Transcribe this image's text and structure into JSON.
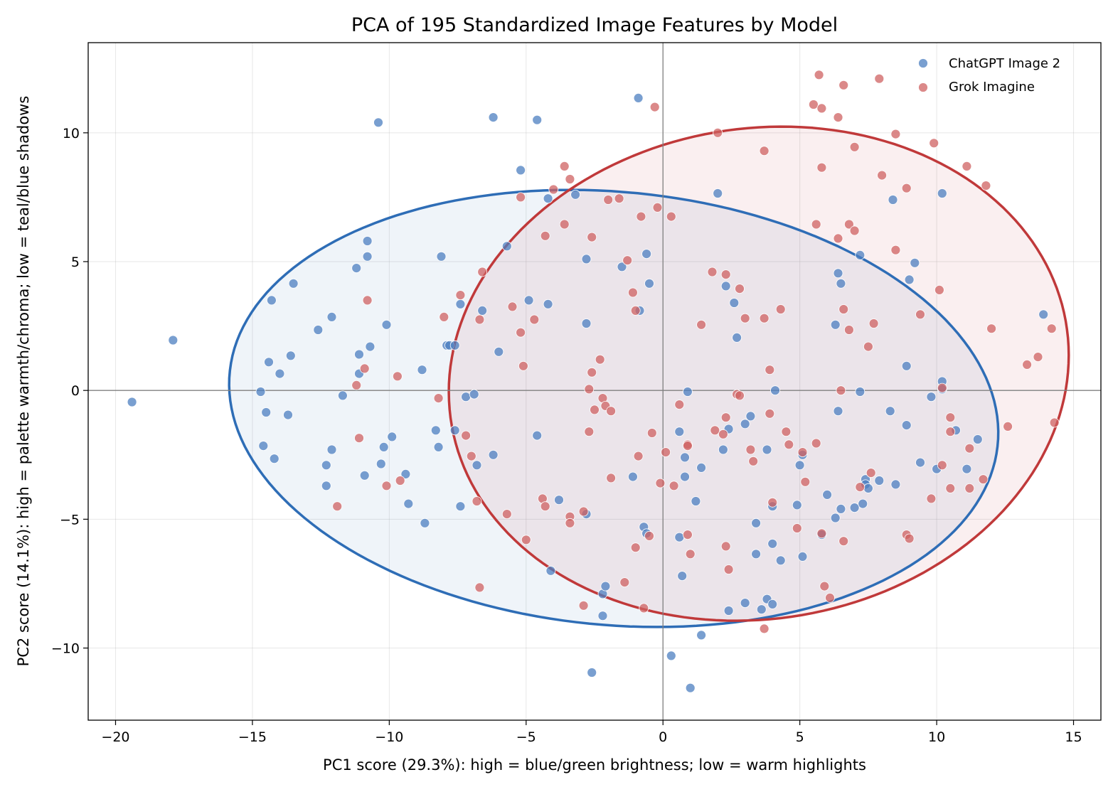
{
  "chart_data": {
    "type": "scatter",
    "title": "PCA of 195 Standardized Image Features by Model",
    "xlabel": "PC1 score (29.3%): high = blue/green brightness; low = warm highlights",
    "ylabel": "PC2 score (14.1%): high = palette warmth/chroma; low = teal/blue shadows",
    "xlim": [
      -21.0,
      16.0
    ],
    "ylim": [
      -12.8,
      13.5
    ],
    "xticks": [
      -20,
      -15,
      -10,
      -5,
      0,
      5,
      10,
      15
    ],
    "yticks": [
      -10,
      -5,
      0,
      5,
      10
    ],
    "xtick_labels": [
      "−20",
      "−15",
      "−10",
      "−5",
      "0",
      "5",
      "10",
      "15"
    ],
    "ytick_labels": [
      "−10",
      "−5",
      "0",
      "5",
      "10"
    ],
    "grid": true,
    "legend_position": "top-right",
    "series": [
      {
        "name": "ChatGPT Image 2",
        "color": "#4c7fc0",
        "ellipse": {
          "cx": -1.8,
          "cy": -0.7,
          "rx": 14.1,
          "ry": 8.4,
          "angle_deg": -6,
          "color": "#2e6db6"
        },
        "points": [
          [
            -19.4,
            -0.45
          ],
          [
            -17.9,
            1.95
          ],
          [
            -14.7,
            -0.05
          ],
          [
            -14.6,
            -2.15
          ],
          [
            -14.5,
            -0.85
          ],
          [
            -14.4,
            1.1
          ],
          [
            -14.3,
            3.5
          ],
          [
            -14.2,
            -2.65
          ],
          [
            -14.0,
            0.65
          ],
          [
            -13.7,
            -0.95
          ],
          [
            -13.6,
            1.35
          ],
          [
            -13.5,
            4.15
          ],
          [
            -12.6,
            2.35
          ],
          [
            -12.3,
            -2.9
          ],
          [
            -12.3,
            -3.7
          ],
          [
            -12.1,
            2.85
          ],
          [
            -12.1,
            -2.3
          ],
          [
            -11.7,
            -0.2
          ],
          [
            -11.2,
            4.75
          ],
          [
            -11.1,
            1.4
          ],
          [
            -11.1,
            0.65
          ],
          [
            -10.9,
            -3.3
          ],
          [
            -10.8,
            5.8
          ],
          [
            -10.8,
            5.2
          ],
          [
            -10.7,
            1.7
          ],
          [
            -10.4,
            10.4
          ],
          [
            -10.3,
            -2.85
          ],
          [
            -10.2,
            -2.2
          ],
          [
            -10.1,
            2.55
          ],
          [
            -9.9,
            -1.8
          ],
          [
            -9.4,
            -3.25
          ],
          [
            -9.3,
            -4.4
          ],
          [
            -8.8,
            0.8
          ],
          [
            -8.7,
            -5.15
          ],
          [
            -8.3,
            -1.55
          ],
          [
            -8.2,
            -2.2
          ],
          [
            -8.1,
            5.2
          ],
          [
            -7.9,
            1.75
          ],
          [
            -7.8,
            1.75
          ],
          [
            -7.6,
            -1.55
          ],
          [
            -7.6,
            1.75
          ],
          [
            -7.4,
            3.35
          ],
          [
            -7.4,
            -4.5
          ],
          [
            -7.2,
            -0.25
          ],
          [
            -6.9,
            -0.15
          ],
          [
            -6.8,
            -2.9
          ],
          [
            -6.6,
            3.1
          ],
          [
            -6.2,
            10.6
          ],
          [
            -6.2,
            -2.5
          ],
          [
            -6.0,
            1.5
          ],
          [
            -5.7,
            5.6
          ],
          [
            -5.2,
            8.55
          ],
          [
            -4.9,
            3.5
          ],
          [
            -4.6,
            10.5
          ],
          [
            -4.6,
            -1.75
          ],
          [
            -4.2,
            3.35
          ],
          [
            -4.2,
            7.45
          ],
          [
            -4.1,
            -7.0
          ],
          [
            -3.8,
            -4.25
          ],
          [
            -3.2,
            7.6
          ],
          [
            -2.8,
            5.1
          ],
          [
            -2.8,
            2.6
          ],
          [
            -2.8,
            -4.8
          ],
          [
            -2.2,
            -8.75
          ],
          [
            -2.2,
            -7.9
          ],
          [
            -2.1,
            -7.6
          ],
          [
            -2.6,
            -10.95
          ],
          [
            -1.5,
            4.8
          ],
          [
            -1.1,
            -3.35
          ],
          [
            -0.9,
            11.35
          ],
          [
            -0.85,
            3.1
          ],
          [
            -0.7,
            -5.3
          ],
          [
            -0.6,
            -5.55
          ],
          [
            -0.6,
            5.3
          ],
          [
            -0.5,
            4.15
          ],
          [
            0.3,
            -10.3
          ],
          [
            0.6,
            -5.7
          ],
          [
            0.6,
            -1.6
          ],
          [
            0.7,
            -7.2
          ],
          [
            0.8,
            -3.35
          ],
          [
            0.8,
            -2.6
          ],
          [
            0.9,
            -0.05
          ],
          [
            1.0,
            -11.55
          ],
          [
            1.2,
            -4.3
          ],
          [
            1.4,
            -9.5
          ],
          [
            1.4,
            -3.0
          ],
          [
            2.0,
            7.65
          ],
          [
            2.2,
            -2.3
          ],
          [
            2.3,
            4.05
          ],
          [
            2.4,
            -1.5
          ],
          [
            2.4,
            -8.55
          ],
          [
            2.6,
            3.4
          ],
          [
            2.7,
            2.05
          ],
          [
            3.0,
            -8.25
          ],
          [
            3.0,
            -1.3
          ],
          [
            3.2,
            -1.0
          ],
          [
            3.4,
            -5.15
          ],
          [
            3.4,
            -6.35
          ],
          [
            3.6,
            -8.5
          ],
          [
            3.8,
            -8.1
          ],
          [
            3.8,
            -2.3
          ],
          [
            4.0,
            -4.5
          ],
          [
            4.0,
            -5.95
          ],
          [
            4.0,
            -8.3
          ],
          [
            4.1,
            0.0
          ],
          [
            4.3,
            -6.6
          ],
          [
            4.9,
            -4.45
          ],
          [
            5.0,
            -2.9
          ],
          [
            5.1,
            -6.45
          ],
          [
            5.1,
            -2.5
          ],
          [
            5.8,
            -5.6
          ],
          [
            6.0,
            -4.05
          ],
          [
            6.3,
            -4.95
          ],
          [
            6.3,
            2.55
          ],
          [
            6.4,
            4.55
          ],
          [
            6.4,
            -0.8
          ],
          [
            6.5,
            -4.6
          ],
          [
            6.5,
            4.15
          ],
          [
            7.2,
            -0.05
          ],
          [
            7.2,
            5.25
          ],
          [
            7.3,
            -4.4
          ],
          [
            7.4,
            -3.45
          ],
          [
            7.4,
            -3.65
          ],
          [
            7.5,
            -3.8
          ],
          [
            7.0,
            -4.55
          ],
          [
            7.9,
            -3.5
          ],
          [
            8.3,
            -0.8
          ],
          [
            8.4,
            7.4
          ],
          [
            8.5,
            -3.65
          ],
          [
            8.9,
            0.95
          ],
          [
            8.9,
            -1.35
          ],
          [
            9.0,
            4.3
          ],
          [
            9.2,
            4.95
          ],
          [
            9.4,
            -2.8
          ],
          [
            9.8,
            -0.25
          ],
          [
            10.0,
            -3.05
          ],
          [
            10.2,
            7.65
          ],
          [
            10.2,
            0.35
          ],
          [
            10.2,
            0.05
          ],
          [
            10.7,
            -1.55
          ],
          [
            11.1,
            -3.05
          ],
          [
            11.5,
            -1.9
          ],
          [
            13.9,
            2.95
          ]
        ]
      },
      {
        "name": "Grok Imagine",
        "color": "#cf6262",
        "ellipse": {
          "cx": 3.5,
          "cy": 0.65,
          "rx": 11.4,
          "ry": 9.5,
          "angle_deg": 12,
          "color": "#c0393a"
        },
        "points": [
          [
            -11.9,
            -4.5
          ],
          [
            -11.2,
            0.2
          ],
          [
            -11.1,
            -1.85
          ],
          [
            -10.9,
            0.85
          ],
          [
            -10.8,
            3.5
          ],
          [
            -10.1,
            -3.7
          ],
          [
            -9.6,
            -3.5
          ],
          [
            -9.7,
            0.55
          ],
          [
            -8.2,
            -0.3
          ],
          [
            -8.0,
            2.85
          ],
          [
            -7.4,
            3.7
          ],
          [
            -7.2,
            -1.75
          ],
          [
            -7.0,
            -2.55
          ],
          [
            -6.8,
            -4.3
          ],
          [
            -6.7,
            2.75
          ],
          [
            -6.6,
            4.6
          ],
          [
            -6.7,
            -7.65
          ],
          [
            -5.7,
            -4.8
          ],
          [
            -5.5,
            3.25
          ],
          [
            -5.2,
            2.25
          ],
          [
            -5.2,
            7.5
          ],
          [
            -5.1,
            0.95
          ],
          [
            -5.0,
            -5.8
          ],
          [
            -4.7,
            2.75
          ],
          [
            -4.4,
            -4.2
          ],
          [
            -4.3,
            -4.5
          ],
          [
            -4.3,
            6.0
          ],
          [
            -4.0,
            7.8
          ],
          [
            -3.6,
            8.7
          ],
          [
            -3.6,
            6.45
          ],
          [
            -3.4,
            8.2
          ],
          [
            -3.4,
            -4.9
          ],
          [
            -3.4,
            -5.15
          ],
          [
            -2.9,
            -4.7
          ],
          [
            -2.9,
            -8.35
          ],
          [
            -2.7,
            -1.6
          ],
          [
            -2.7,
            0.05
          ],
          [
            -2.6,
            0.7
          ],
          [
            -2.6,
            5.95
          ],
          [
            -2.5,
            -0.75
          ],
          [
            -2.3,
            1.2
          ],
          [
            -2.2,
            -0.3
          ],
          [
            -2.1,
            -0.6
          ],
          [
            -2.0,
            7.4
          ],
          [
            -1.9,
            -0.8
          ],
          [
            -1.9,
            -3.4
          ],
          [
            -1.6,
            7.45
          ],
          [
            -1.4,
            -7.45
          ],
          [
            -1.3,
            5.05
          ],
          [
            -1.1,
            3.8
          ],
          [
            -1.0,
            -6.1
          ],
          [
            -1.0,
            3.1
          ],
          [
            -0.9,
            -2.55
          ],
          [
            -0.8,
            6.75
          ],
          [
            -0.7,
            -8.45
          ],
          [
            -0.5,
            -5.65
          ],
          [
            -0.4,
            -1.65
          ],
          [
            -0.3,
            11.0
          ],
          [
            -0.2,
            7.1
          ],
          [
            -0.1,
            -3.6
          ],
          [
            0.1,
            -2.4
          ],
          [
            0.3,
            6.75
          ],
          [
            0.4,
            -3.7
          ],
          [
            0.6,
            -0.55
          ],
          [
            0.9,
            -2.1
          ],
          [
            0.9,
            -2.15
          ],
          [
            0.9,
            -5.6
          ],
          [
            1.0,
            -6.35
          ],
          [
            1.4,
            2.55
          ],
          [
            1.8,
            4.6
          ],
          [
            1.9,
            -1.55
          ],
          [
            2.0,
            10.0
          ],
          [
            2.2,
            -1.7
          ],
          [
            2.3,
            4.5
          ],
          [
            2.3,
            -1.05
          ],
          [
            2.3,
            -6.05
          ],
          [
            2.4,
            -6.95
          ],
          [
            2.7,
            -0.15
          ],
          [
            2.8,
            -0.2
          ],
          [
            2.8,
            3.95
          ],
          [
            3.0,
            2.8
          ],
          [
            3.2,
            -2.3
          ],
          [
            3.3,
            -2.75
          ],
          [
            3.7,
            9.3
          ],
          [
            3.7,
            -9.25
          ],
          [
            3.7,
            2.8
          ],
          [
            3.9,
            0.8
          ],
          [
            3.9,
            -0.9
          ],
          [
            4.0,
            -4.35
          ],
          [
            4.3,
            3.15
          ],
          [
            4.5,
            -1.6
          ],
          [
            4.6,
            -2.1
          ],
          [
            4.9,
            -5.35
          ],
          [
            5.1,
            -2.4
          ],
          [
            5.2,
            -3.55
          ],
          [
            5.5,
            11.1
          ],
          [
            5.6,
            6.45
          ],
          [
            5.6,
            -2.05
          ],
          [
            5.7,
            12.25
          ],
          [
            5.8,
            10.95
          ],
          [
            5.8,
            8.65
          ],
          [
            5.8,
            -5.55
          ],
          [
            5.9,
            -7.6
          ],
          [
            6.1,
            -8.05
          ],
          [
            6.4,
            10.6
          ],
          [
            6.4,
            5.9
          ],
          [
            6.5,
            0.0
          ],
          [
            6.6,
            11.85
          ],
          [
            6.6,
            3.15
          ],
          [
            6.6,
            -5.85
          ],
          [
            6.8,
            6.45
          ],
          [
            6.8,
            2.35
          ],
          [
            7.0,
            9.45
          ],
          [
            7.0,
            6.2
          ],
          [
            7.2,
            -3.75
          ],
          [
            7.5,
            1.7
          ],
          [
            7.6,
            -3.2
          ],
          [
            7.7,
            2.6
          ],
          [
            7.9,
            12.1
          ],
          [
            8.0,
            8.35
          ],
          [
            8.5,
            9.95
          ],
          [
            8.5,
            5.45
          ],
          [
            8.9,
            7.85
          ],
          [
            8.9,
            -5.6
          ],
          [
            9.0,
            -5.75
          ],
          [
            9.4,
            2.95
          ],
          [
            9.8,
            -4.2
          ],
          [
            9.9,
            9.6
          ],
          [
            10.1,
            3.9
          ],
          [
            10.2,
            -2.9
          ],
          [
            10.2,
            0.1
          ],
          [
            10.5,
            -1.05
          ],
          [
            10.5,
            -1.6
          ],
          [
            10.5,
            -3.8
          ],
          [
            11.1,
            8.7
          ],
          [
            11.2,
            -2.25
          ],
          [
            11.2,
            -3.8
          ],
          [
            11.7,
            -3.45
          ],
          [
            11.8,
            7.95
          ],
          [
            12.0,
            2.4
          ],
          [
            12.6,
            -1.4
          ],
          [
            13.3,
            1.0
          ],
          [
            13.7,
            1.3
          ],
          [
            14.2,
            2.4
          ],
          [
            14.3,
            -1.25
          ]
        ]
      }
    ]
  }
}
